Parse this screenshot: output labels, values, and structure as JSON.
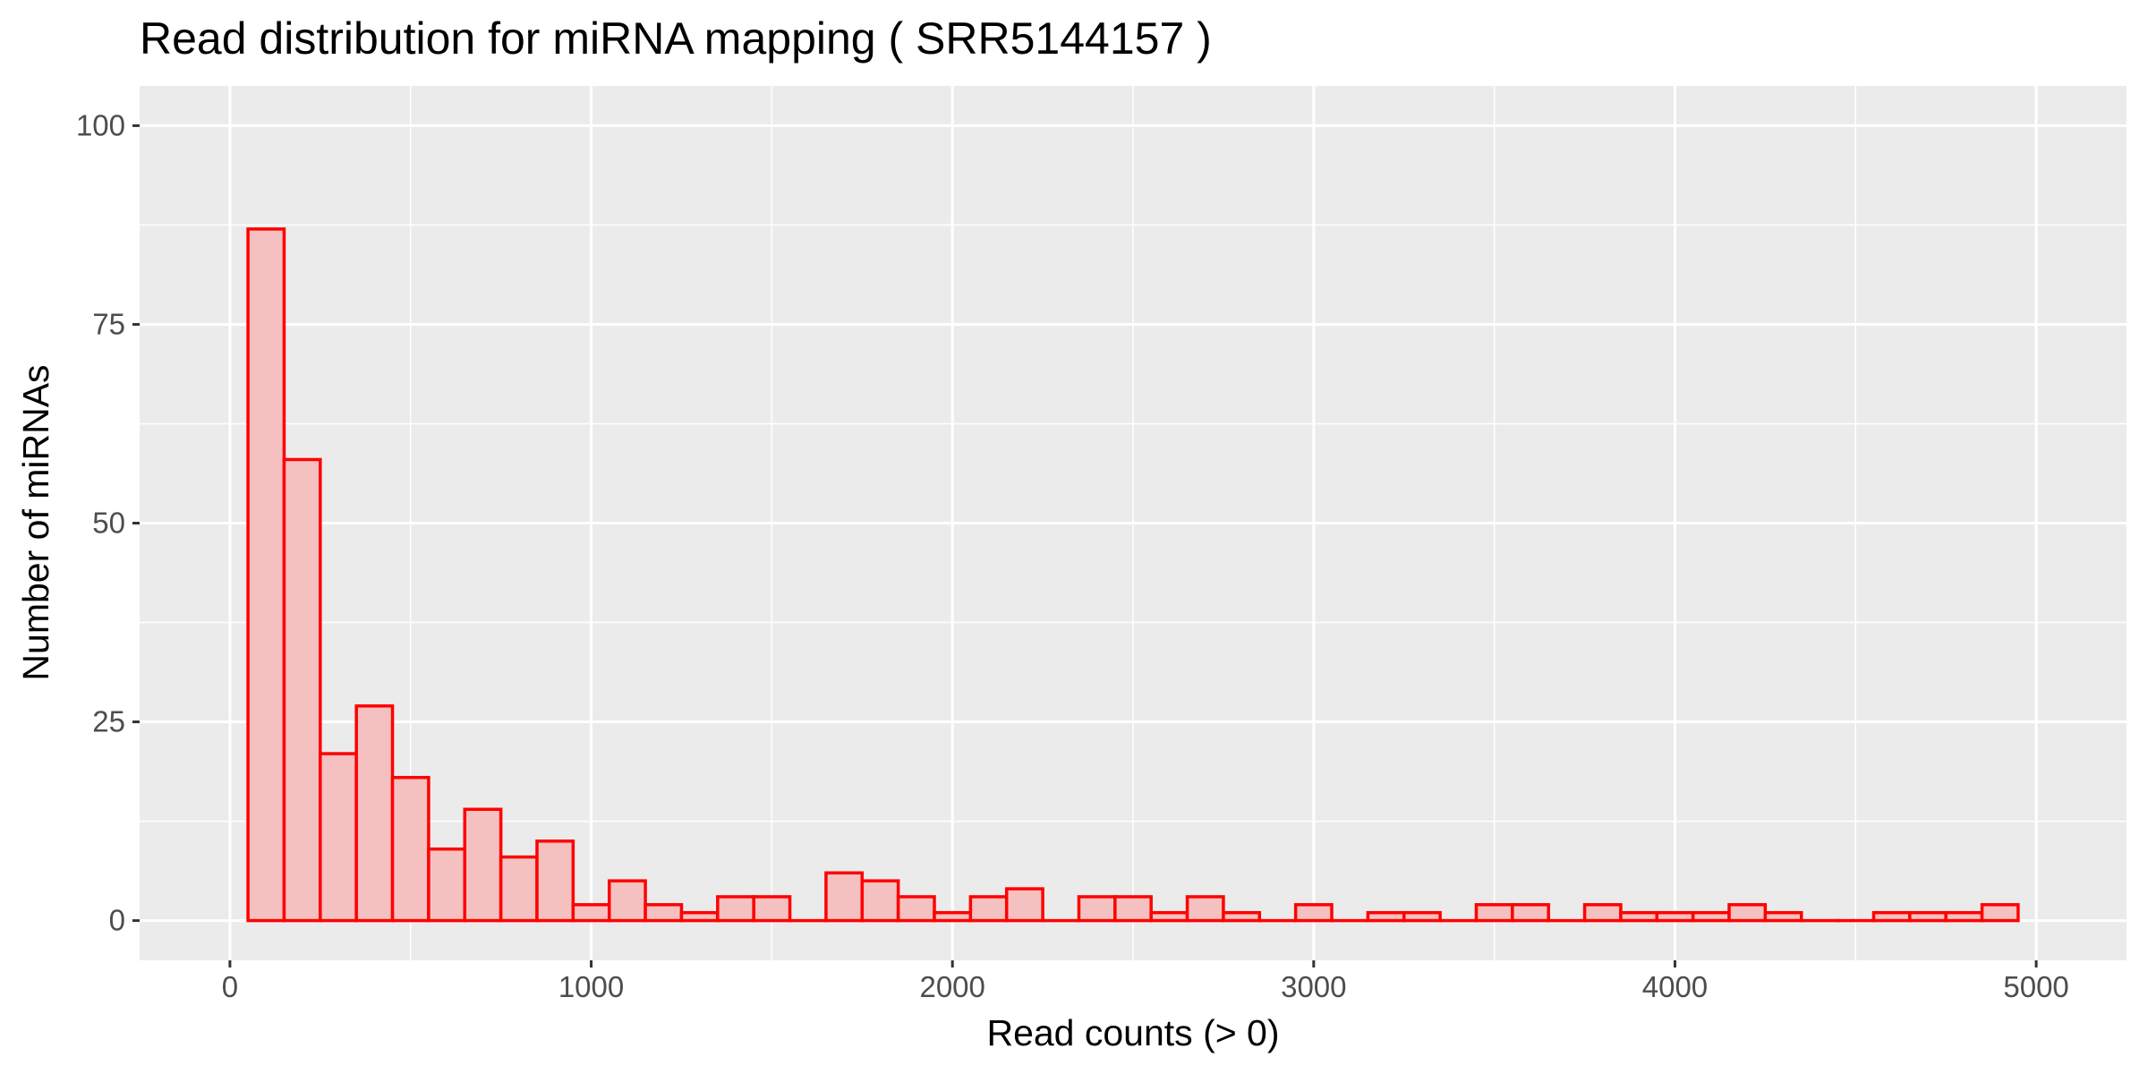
{
  "chart_data": {
    "type": "bar",
    "title": "Read distribution for miRNA mapping ( SRR5144157 )",
    "xlabel": "Read counts (> 0)",
    "ylabel": "Number of miRNAs",
    "xlim": [
      -250,
      5250
    ],
    "ylim": [
      -5,
      105
    ],
    "x_ticks": [
      0,
      1000,
      2000,
      3000,
      4000,
      5000
    ],
    "x_tick_labels": [
      "0",
      "1000",
      "2000",
      "3000",
      "4000",
      "5000"
    ],
    "y_ticks": [
      0,
      25,
      50,
      75,
      100
    ],
    "y_tick_labels": [
      "0",
      "25",
      "50",
      "75",
      "100"
    ],
    "grid": true,
    "bin_width": 100,
    "bar_fill": "#f4c0c0",
    "bar_stroke": "#ff0000",
    "panel_background": "#ebebeb",
    "grid_color": "#ffffff",
    "bins": [
      {
        "x0": 50,
        "x1": 150,
        "count": 87
      },
      {
        "x0": 150,
        "x1": 250,
        "count": 58
      },
      {
        "x0": 250,
        "x1": 350,
        "count": 21
      },
      {
        "x0": 350,
        "x1": 450,
        "count": 27
      },
      {
        "x0": 450,
        "x1": 550,
        "count": 18
      },
      {
        "x0": 550,
        "x1": 650,
        "count": 9
      },
      {
        "x0": 650,
        "x1": 750,
        "count": 14
      },
      {
        "x0": 750,
        "x1": 850,
        "count": 8
      },
      {
        "x0": 850,
        "x1": 950,
        "count": 10
      },
      {
        "x0": 950,
        "x1": 1050,
        "count": 2
      },
      {
        "x0": 1050,
        "x1": 1150,
        "count": 5
      },
      {
        "x0": 1150,
        "x1": 1250,
        "count": 2
      },
      {
        "x0": 1250,
        "x1": 1350,
        "count": 1
      },
      {
        "x0": 1350,
        "x1": 1450,
        "count": 3
      },
      {
        "x0": 1450,
        "x1": 1550,
        "count": 3
      },
      {
        "x0": 1550,
        "x1": 1650,
        "count": 0
      },
      {
        "x0": 1650,
        "x1": 1750,
        "count": 6
      },
      {
        "x0": 1750,
        "x1": 1850,
        "count": 5
      },
      {
        "x0": 1850,
        "x1": 1950,
        "count": 3
      },
      {
        "x0": 1950,
        "x1": 2050,
        "count": 1
      },
      {
        "x0": 2050,
        "x1": 2150,
        "count": 3
      },
      {
        "x0": 2150,
        "x1": 2250,
        "count": 4
      },
      {
        "x0": 2250,
        "x1": 2350,
        "count": 0
      },
      {
        "x0": 2350,
        "x1": 2450,
        "count": 3
      },
      {
        "x0": 2450,
        "x1": 2550,
        "count": 3
      },
      {
        "x0": 2550,
        "x1": 2650,
        "count": 1
      },
      {
        "x0": 2650,
        "x1": 2750,
        "count": 3
      },
      {
        "x0": 2750,
        "x1": 2850,
        "count": 1
      },
      {
        "x0": 2850,
        "x1": 2950,
        "count": 0
      },
      {
        "x0": 2950,
        "x1": 3050,
        "count": 2
      },
      {
        "x0": 3050,
        "x1": 3150,
        "count": 0
      },
      {
        "x0": 3150,
        "x1": 3250,
        "count": 1
      },
      {
        "x0": 3250,
        "x1": 3350,
        "count": 1
      },
      {
        "x0": 3350,
        "x1": 3450,
        "count": 0
      },
      {
        "x0": 3450,
        "x1": 3550,
        "count": 2
      },
      {
        "x0": 3550,
        "x1": 3650,
        "count": 2
      },
      {
        "x0": 3650,
        "x1": 3750,
        "count": 0
      },
      {
        "x0": 3750,
        "x1": 3850,
        "count": 2
      },
      {
        "x0": 3850,
        "x1": 3950,
        "count": 1
      },
      {
        "x0": 3950,
        "x1": 4050,
        "count": 1
      },
      {
        "x0": 4050,
        "x1": 4150,
        "count": 1
      },
      {
        "x0": 4150,
        "x1": 4250,
        "count": 2
      },
      {
        "x0": 4250,
        "x1": 4350,
        "count": 1
      },
      {
        "x0": 4350,
        "x1": 4450,
        "count": 0
      },
      {
        "x0": 4450,
        "x1": 4550,
        "count": 0
      },
      {
        "x0": 4550,
        "x1": 4650,
        "count": 1
      },
      {
        "x0": 4650,
        "x1": 4750,
        "count": 1
      },
      {
        "x0": 4750,
        "x1": 4850,
        "count": 1
      },
      {
        "x0": 4850,
        "x1": 4950,
        "count": 2
      }
    ]
  }
}
